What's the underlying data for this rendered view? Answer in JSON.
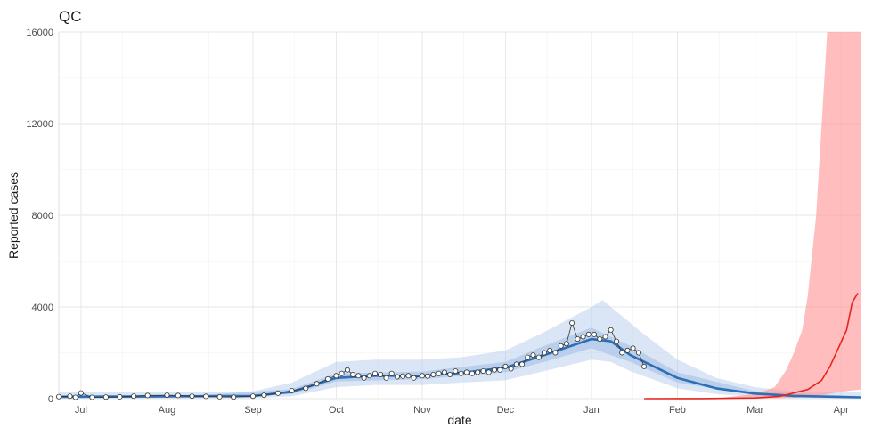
{
  "chart_data": {
    "type": "line",
    "title": "QC",
    "xlabel": "date",
    "ylabel": "Reported cases",
    "x_range": [
      "2020-06-23",
      "2021-04-08"
    ],
    "ylim": [
      0,
      16000
    ],
    "y_ticks": [
      0,
      4000,
      8000,
      12000,
      16000
    ],
    "x_ticks": [
      {
        "date": "2020-07-01",
        "label": "Jul"
      },
      {
        "date": "2020-08-01",
        "label": "Aug"
      },
      {
        "date": "2020-09-01",
        "label": "Sep"
      },
      {
        "date": "2020-10-01",
        "label": "Oct"
      },
      {
        "date": "2020-11-01",
        "label": "Nov"
      },
      {
        "date": "2020-12-01",
        "label": "Dec"
      },
      {
        "date": "2021-01-01",
        "label": "Jan"
      },
      {
        "date": "2021-02-01",
        "label": "Feb"
      },
      {
        "date": "2021-03-01",
        "label": "Mar"
      },
      {
        "date": "2021-04-01",
        "label": "Apr"
      }
    ],
    "grid": true,
    "colors": {
      "observed": "#333333",
      "fit": "#2f6eb5",
      "fit_band": "#aec7e8",
      "projection": "#e8231f",
      "projection_band": "#ff9999"
    },
    "series": [
      {
        "kind": "observed points",
        "points": [
          [
            "2020-06-23",
            90
          ],
          [
            "2020-06-27",
            110
          ],
          [
            "2020-06-29",
            60
          ],
          [
            "2020-07-01",
            250
          ],
          [
            "2020-07-05",
            60
          ],
          [
            "2020-07-10",
            70
          ],
          [
            "2020-07-15",
            80
          ],
          [
            "2020-07-20",
            110
          ],
          [
            "2020-07-25",
            140
          ],
          [
            "2020-08-01",
            150
          ],
          [
            "2020-08-05",
            140
          ],
          [
            "2020-08-10",
            110
          ],
          [
            "2020-08-15",
            100
          ],
          [
            "2020-08-20",
            80
          ],
          [
            "2020-08-25",
            70
          ],
          [
            "2020-09-01",
            110
          ],
          [
            "2020-09-05",
            150
          ],
          [
            "2020-09-10",
            240
          ],
          [
            "2020-09-15",
            350
          ],
          [
            "2020-09-20",
            450
          ],
          [
            "2020-09-24",
            650
          ],
          [
            "2020-09-28",
            860
          ],
          [
            "2020-10-01",
            1000
          ],
          [
            "2020-10-03",
            1100
          ],
          [
            "2020-10-05",
            1250
          ],
          [
            "2020-10-07",
            1050
          ],
          [
            "2020-10-09",
            1000
          ],
          [
            "2020-10-11",
            900
          ],
          [
            "2020-10-13",
            1000
          ],
          [
            "2020-10-15",
            1100
          ],
          [
            "2020-10-17",
            1050
          ],
          [
            "2020-10-19",
            900
          ],
          [
            "2020-10-21",
            1100
          ],
          [
            "2020-10-23",
            950
          ],
          [
            "2020-10-25",
            980
          ],
          [
            "2020-10-27",
            1000
          ],
          [
            "2020-10-29",
            900
          ],
          [
            "2020-11-01",
            1000
          ],
          [
            "2020-11-03",
            980
          ],
          [
            "2020-11-05",
            1050
          ],
          [
            "2020-11-07",
            1100
          ],
          [
            "2020-11-09",
            1150
          ],
          [
            "2020-11-11",
            1050
          ],
          [
            "2020-11-13",
            1200
          ],
          [
            "2020-11-15",
            1100
          ],
          [
            "2020-11-17",
            1150
          ],
          [
            "2020-11-19",
            1100
          ],
          [
            "2020-11-21",
            1150
          ],
          [
            "2020-11-23",
            1200
          ],
          [
            "2020-11-25",
            1150
          ],
          [
            "2020-11-27",
            1250
          ],
          [
            "2020-11-29",
            1250
          ],
          [
            "2020-12-01",
            1400
          ],
          [
            "2020-12-03",
            1300
          ],
          [
            "2020-12-05",
            1500
          ],
          [
            "2020-12-07",
            1500
          ],
          [
            "2020-12-09",
            1800
          ],
          [
            "2020-12-11",
            1900
          ],
          [
            "2020-12-13",
            1800
          ],
          [
            "2020-12-15",
            2000
          ],
          [
            "2020-12-17",
            2100
          ],
          [
            "2020-12-19",
            2000
          ],
          [
            "2020-12-21",
            2300
          ],
          [
            "2020-12-23",
            2400
          ],
          [
            "2020-12-25",
            3300
          ],
          [
            "2020-12-27",
            2600
          ],
          [
            "2020-12-29",
            2700
          ],
          [
            "2020-12-31",
            2800
          ],
          [
            "2021-01-02",
            2800
          ],
          [
            "2021-01-04",
            2600
          ],
          [
            "2021-01-06",
            2700
          ],
          [
            "2021-01-08",
            3000
          ],
          [
            "2021-01-10",
            2500
          ],
          [
            "2021-01-12",
            2000
          ],
          [
            "2021-01-14",
            2100
          ],
          [
            "2021-01-16",
            2200
          ],
          [
            "2021-01-18",
            2000
          ],
          [
            "2021-01-20",
            1400
          ]
        ]
      },
      {
        "kind": "fitted median",
        "points": [
          [
            "2020-06-23",
            80
          ],
          [
            "2020-07-15",
            90
          ],
          [
            "2020-08-15",
            110
          ],
          [
            "2020-09-01",
            120
          ],
          [
            "2020-09-15",
            300
          ],
          [
            "2020-10-01",
            900
          ],
          [
            "2020-10-15",
            1000
          ],
          [
            "2020-11-01",
            1000
          ],
          [
            "2020-11-15",
            1120
          ],
          [
            "2020-12-01",
            1350
          ],
          [
            "2020-12-15",
            1900
          ],
          [
            "2021-01-01",
            2600
          ],
          [
            "2021-01-08",
            2500
          ],
          [
            "2021-01-15",
            1900
          ],
          [
            "2021-02-01",
            900
          ],
          [
            "2021-02-15",
            450
          ],
          [
            "2021-03-01",
            220
          ],
          [
            "2021-03-15",
            120
          ],
          [
            "2021-04-08",
            60
          ]
        ]
      },
      {
        "kind": "fitted 95% band",
        "lower": [
          [
            "2020-06-23",
            10
          ],
          [
            "2020-07-15",
            15
          ],
          [
            "2020-08-15",
            20
          ],
          [
            "2020-09-01",
            30
          ],
          [
            "2020-09-15",
            100
          ],
          [
            "2020-10-01",
            500
          ],
          [
            "2020-10-15",
            600
          ],
          [
            "2020-11-01",
            600
          ],
          [
            "2020-11-15",
            700
          ],
          [
            "2020-12-01",
            800
          ],
          [
            "2020-12-15",
            1200
          ],
          [
            "2021-01-01",
            1700
          ],
          [
            "2021-01-08",
            1600
          ],
          [
            "2021-01-15",
            1200
          ],
          [
            "2021-02-01",
            450
          ],
          [
            "2021-02-15",
            200
          ],
          [
            "2021-03-01",
            80
          ],
          [
            "2021-03-15",
            30
          ],
          [
            "2021-04-08",
            5
          ]
        ],
        "upper": [
          [
            "2020-06-23",
            300
          ],
          [
            "2020-07-15",
            280
          ],
          [
            "2020-08-15",
            300
          ],
          [
            "2020-09-01",
            320
          ],
          [
            "2020-09-15",
            700
          ],
          [
            "2020-10-01",
            1600
          ],
          [
            "2020-10-15",
            1700
          ],
          [
            "2020-11-01",
            1700
          ],
          [
            "2020-11-15",
            1800
          ],
          [
            "2020-12-01",
            2100
          ],
          [
            "2020-12-15",
            2900
          ],
          [
            "2021-01-01",
            4000
          ],
          [
            "2021-01-05",
            4300
          ],
          [
            "2021-01-10",
            3800
          ],
          [
            "2021-01-20",
            2800
          ],
          [
            "2021-02-01",
            1700
          ],
          [
            "2021-02-15",
            900
          ],
          [
            "2021-03-01",
            500
          ],
          [
            "2021-03-15",
            320
          ],
          [
            "2021-04-08",
            300
          ]
        ]
      },
      {
        "kind": "fitted 50% band",
        "lower": [
          [
            "2020-06-23",
            40
          ],
          [
            "2020-08-15",
            60
          ],
          [
            "2020-09-15",
            200
          ],
          [
            "2020-10-01",
            750
          ],
          [
            "2020-11-01",
            850
          ],
          [
            "2020-12-01",
            1150
          ],
          [
            "2020-12-15",
            1600
          ],
          [
            "2021-01-01",
            2200
          ],
          [
            "2021-01-15",
            1600
          ],
          [
            "2021-02-01",
            700
          ],
          [
            "2021-03-01",
            150
          ],
          [
            "2021-04-08",
            30
          ]
        ],
        "upper": [
          [
            "2020-06-23",
            150
          ],
          [
            "2020-08-15",
            170
          ],
          [
            "2020-09-15",
            420
          ],
          [
            "2020-10-01",
            1100
          ],
          [
            "2020-11-01",
            1180
          ],
          [
            "2020-12-01",
            1600
          ],
          [
            "2020-12-15",
            2300
          ],
          [
            "2021-01-01",
            3100
          ],
          [
            "2021-01-15",
            2300
          ],
          [
            "2021-02-01",
            1150
          ],
          [
            "2021-03-01",
            320
          ],
          [
            "2021-04-08",
            100
          ]
        ]
      },
      {
        "kind": "projection median",
        "points": [
          [
            "2021-01-20",
            0
          ],
          [
            "2021-02-10",
            5
          ],
          [
            "2021-03-01",
            30
          ],
          [
            "2021-03-10",
            100
          ],
          [
            "2021-03-20",
            400
          ],
          [
            "2021-03-25",
            800
          ],
          [
            "2021-03-28",
            1400
          ],
          [
            "2021-03-31",
            2200
          ],
          [
            "2021-04-03",
            3000
          ],
          [
            "2021-04-05",
            4200
          ],
          [
            "2021-04-07",
            4600
          ]
        ]
      },
      {
        "kind": "projection band",
        "lower": [
          [
            "2021-01-20",
            0
          ],
          [
            "2021-03-01",
            5
          ],
          [
            "2021-03-15",
            30
          ],
          [
            "2021-03-25",
            150
          ],
          [
            "2021-04-01",
            300
          ],
          [
            "2021-04-08",
            400
          ]
        ],
        "upper": [
          [
            "2021-01-20",
            0
          ],
          [
            "2021-02-15",
            20
          ],
          [
            "2021-03-01",
            200
          ],
          [
            "2021-03-08",
            500
          ],
          [
            "2021-03-12",
            1200
          ],
          [
            "2021-03-15",
            2000
          ],
          [
            "2021-03-18",
            3000
          ],
          [
            "2021-03-20",
            4500
          ],
          [
            "2021-03-23",
            8000
          ],
          [
            "2021-03-25",
            12000
          ],
          [
            "2021-03-27",
            16000
          ],
          [
            "2021-04-08",
            16000
          ]
        ]
      }
    ]
  }
}
